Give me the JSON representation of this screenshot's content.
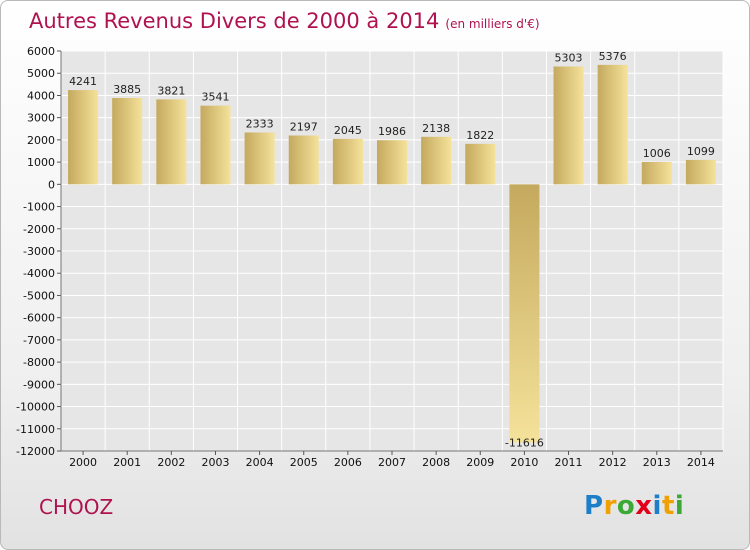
{
  "title": "Autres Revenus Divers de 2000 à 2014",
  "subtitle": "(en milliers d'€)",
  "town": "CHOOZ",
  "brand": {
    "letters": [
      "P",
      "r",
      "o",
      "x",
      "i",
      "t",
      "i"
    ],
    "colors": [
      "#1e7fc8",
      "#f0a000",
      "#3aa935",
      "#e2001a",
      "#1e7fc8",
      "#f0a000",
      "#3aa935"
    ]
  },
  "colors": {
    "bar_light": "#f5e29a",
    "bar_dark": "#c4a95e",
    "title": "#b0124f",
    "grid": "#ffffff"
  },
  "chart_data": {
    "type": "bar",
    "categories": [
      "2000",
      "2001",
      "2002",
      "2003",
      "2004",
      "2005",
      "2006",
      "2007",
      "2008",
      "2009",
      "2010",
      "2011",
      "2012",
      "2013",
      "2014"
    ],
    "values": [
      4241,
      3885,
      3821,
      3541,
      2333,
      2197,
      2045,
      1986,
      2138,
      1822,
      -11616,
      5303,
      5376,
      1006,
      1099
    ],
    "data_labels": [
      "4241",
      "3885",
      "3821",
      "3541",
      "2333",
      "2197",
      "2045",
      "1986",
      "2138",
      "1822",
      "-11616",
      "5303",
      "5376",
      "1006",
      "1099"
    ],
    "title": "Autres Revenus Divers de 2000 à 2014",
    "xlabel": "",
    "ylabel": "",
    "ylim": [
      -12000,
      6000
    ],
    "yticks": [
      6000,
      5000,
      4000,
      3000,
      2000,
      1000,
      0,
      -1000,
      -2000,
      -3000,
      -4000,
      -5000,
      -6000,
      -7000,
      -8000,
      -9000,
      -10000,
      -11000,
      -12000
    ],
    "grid": true
  }
}
